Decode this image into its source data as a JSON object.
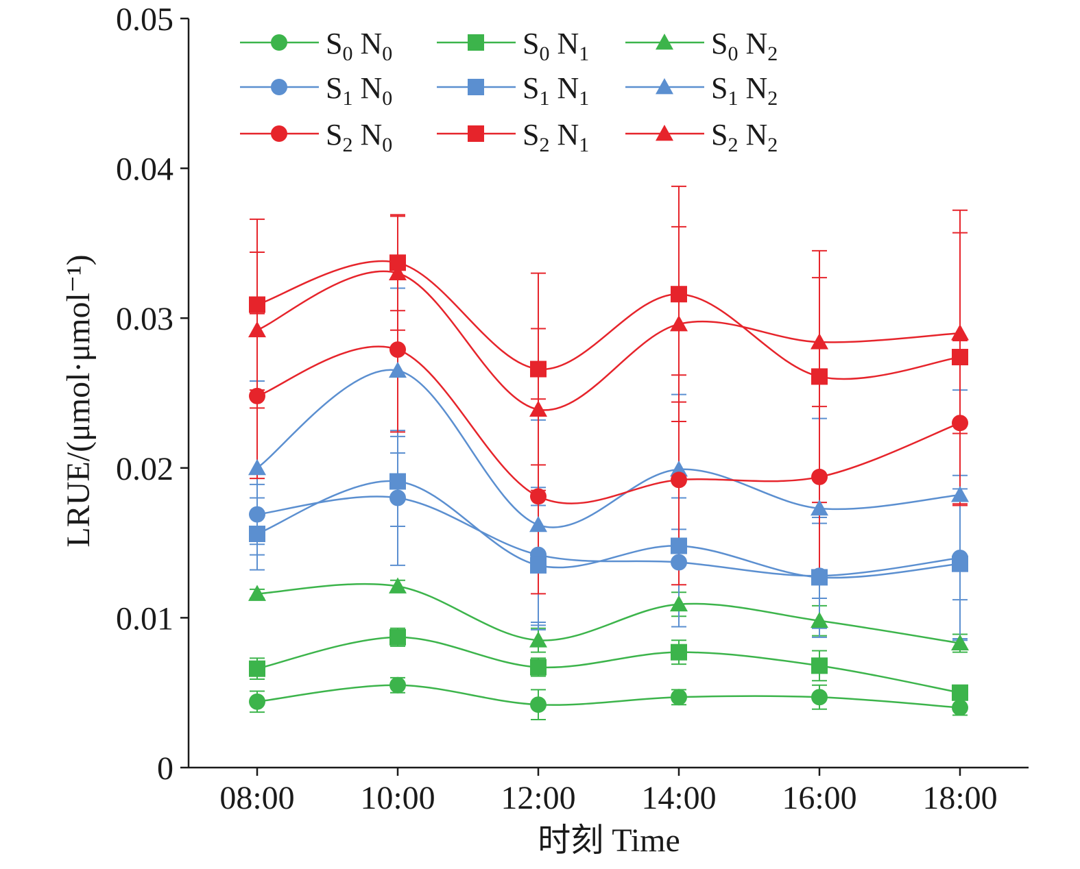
{
  "chart_data": {
    "type": "line",
    "title": "",
    "xlabel": "时刻 Time",
    "ylabel": "LRUE/(μmol·μmol⁻¹)",
    "categories": [
      "08:00",
      "10:00",
      "12:00",
      "14:00",
      "16:00",
      "18:00"
    ],
    "ylim": [
      0,
      0.05
    ],
    "yticks": [
      "0",
      "0.01",
      "0.02",
      "0.03",
      "0.04",
      "0.05"
    ],
    "yticks_values": [
      0,
      0.01,
      0.02,
      0.03,
      0.04,
      0.05
    ],
    "grid": false,
    "legend_position": "top-left",
    "colors": {
      "S0": "#3cb44b",
      "S1": "#5b8fd0",
      "S2": "#e6242b"
    },
    "series": [
      {
        "name": "S0 N0",
        "s": "0",
        "n": "0",
        "color": "#3cb44b",
        "marker": "circle",
        "values": [
          0.0044,
          0.0055,
          0.0042,
          0.0047,
          0.0047,
          0.004
        ],
        "errors": [
          0.0007,
          0.0005,
          0.001,
          0.0005,
          0.0008,
          0.0005
        ]
      },
      {
        "name": "S0 N1",
        "s": "0",
        "n": "1",
        "color": "#3cb44b",
        "marker": "square",
        "values": [
          0.0066,
          0.0087,
          0.0067,
          0.0077,
          0.0068,
          0.005
        ],
        "errors": [
          0.0007,
          0.0006,
          0.0006,
          0.0008,
          0.001,
          0.0004
        ]
      },
      {
        "name": "S0 N2",
        "s": "0",
        "n": "2",
        "color": "#3cb44b",
        "marker": "triangle",
        "values": [
          0.0116,
          0.0121,
          0.0085,
          0.0109,
          0.0098,
          0.0083
        ],
        "errors": [
          0.0003,
          0.0004,
          0.0008,
          0.0008,
          0.001,
          0.0006
        ]
      },
      {
        "name": "S1 N0",
        "s": "1",
        "n": "0",
        "color": "#5b8fd0",
        "marker": "circle",
        "values": [
          0.0169,
          0.018,
          0.0142,
          0.0137,
          0.0128,
          0.014
        ],
        "errors": [
          0.002,
          0.0045,
          0.0045,
          0.0043,
          0.0035,
          0.0055
        ]
      },
      {
        "name": "S1 N1",
        "s": "1",
        "n": "1",
        "color": "#5b8fd0",
        "marker": "square",
        "values": [
          0.0156,
          0.0191,
          0.0135,
          0.0148,
          0.0127,
          0.0136
        ],
        "errors": [
          0.0024,
          0.003,
          0.004,
          0.0011,
          0.004,
          0.005
        ]
      },
      {
        "name": "S1 N2",
        "s": "1",
        "n": "2",
        "color": "#5b8fd0",
        "marker": "triangle",
        "values": [
          0.02,
          0.0265,
          0.0162,
          0.0199,
          0.0173,
          0.0182
        ],
        "errors": [
          0.0058,
          0.0055,
          0.007,
          0.005,
          0.006,
          0.007
        ]
      },
      {
        "name": "S2 N0",
        "s": "2",
        "n": "0",
        "color": "#e6242b",
        "marker": "circle",
        "values": [
          0.0248,
          0.0279,
          0.0181,
          0.0192,
          0.0194,
          0.023
        ],
        "errors": [
          0.0055,
          0.0055,
          0.0065,
          0.007,
          0.0065,
          0.0055
        ]
      },
      {
        "name": "S2 N1",
        "s": "2",
        "n": "1",
        "color": "#e6242b",
        "marker": "square",
        "values": [
          0.0309,
          0.0337,
          0.0266,
          0.0316,
          0.0261,
          0.0274
        ],
        "errors": [
          0.0057,
          0.0032,
          0.0064,
          0.0072,
          0.0084,
          0.0098
        ]
      },
      {
        "name": "S2 N2",
        "s": "2",
        "n": "2",
        "color": "#e6242b",
        "marker": "triangle",
        "values": [
          0.0292,
          0.033,
          0.0239,
          0.0296,
          0.0284,
          0.029
        ],
        "errors": [
          0.0052,
          0.0038,
          0.0054,
          0.0065,
          0.0043,
          0.0067
        ]
      }
    ]
  }
}
